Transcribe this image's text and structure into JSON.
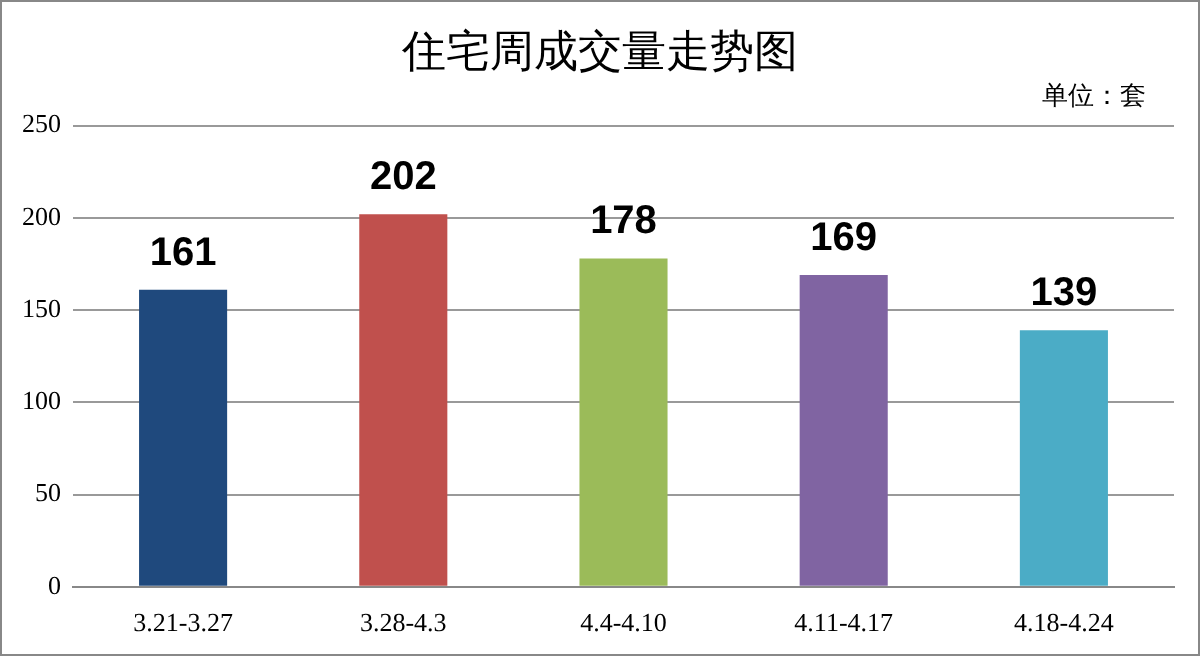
{
  "chart_data": {
    "type": "bar",
    "title": "住宅周成交量走势图",
    "subtitle": "单位：套",
    "categories": [
      "3.21-3.27",
      "3.28-4.3",
      "4.4-4.10",
      "4.11-4.17",
      "4.18-4.24"
    ],
    "values": [
      161,
      202,
      178,
      169,
      139
    ],
    "colors": [
      "#1f497d",
      "#c0504d",
      "#9bbb59",
      "#8064a2",
      "#4bacc6"
    ],
    "ylim": [
      0,
      250
    ],
    "yticks": [
      0,
      50,
      100,
      150,
      200,
      250
    ],
    "grid": "y",
    "data_labels": true,
    "legend": false
  }
}
